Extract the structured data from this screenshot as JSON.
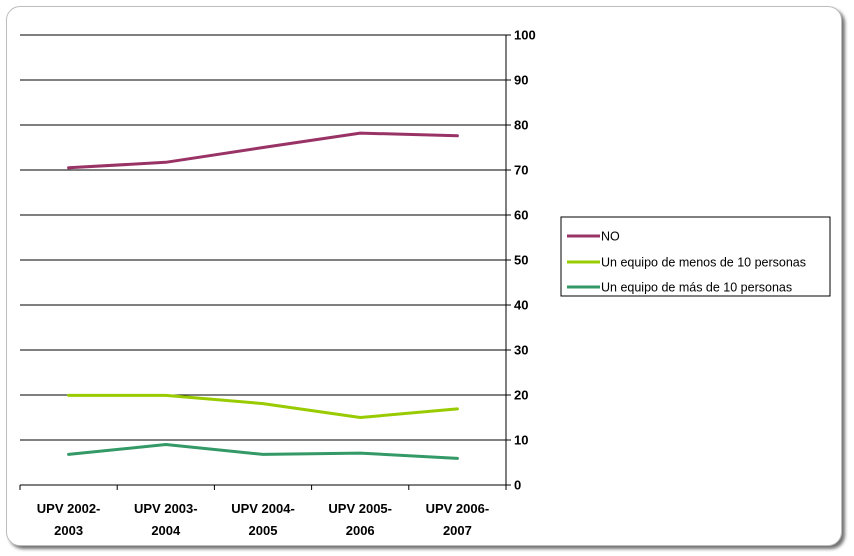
{
  "chart_data": {
    "type": "line",
    "title": "",
    "xlabel": "",
    "ylabel": "",
    "categories": [
      [
        "UPV 2002-",
        "2003"
      ],
      [
        "UPV 2003-",
        "2004"
      ],
      [
        "UPV 2004-",
        "2005"
      ],
      [
        "UPV 2005-",
        "2006"
      ],
      [
        "UPV 2006-",
        "2007"
      ]
    ],
    "ylim": [
      0,
      100
    ],
    "yticks": [
      0,
      10,
      20,
      30,
      40,
      50,
      60,
      70,
      80,
      90,
      100
    ],
    "grid": true,
    "y_axis_side": "right",
    "legend_position": "right",
    "series": [
      {
        "name": "NO",
        "color": "#993366",
        "values": [
          70.5,
          71.7,
          75.0,
          78.2,
          77.6
        ]
      },
      {
        "name": "Un equipo de menos de 10 personas",
        "color": "#99cc00",
        "values": [
          19.9,
          19.9,
          18.1,
          15.0,
          16.9
        ]
      },
      {
        "name": "Un equipo de más de 10 personas",
        "color": "#339966",
        "values": [
          6.8,
          9.0,
          6.8,
          7.1,
          5.9
        ]
      }
    ]
  }
}
